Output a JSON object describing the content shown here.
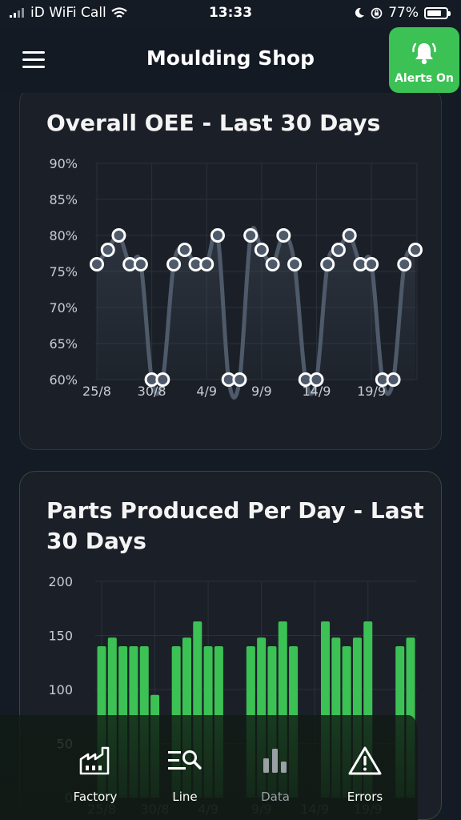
{
  "status_bar": {
    "carrier": "iD WiFi Call",
    "time": "13:33",
    "battery": "77%",
    "battery_level": 0.77
  },
  "header": {
    "title": "Moulding Shop",
    "alerts_label": "Alerts On"
  },
  "oee_card": {
    "title": "Overall OEE - Last 30 Days",
    "chart_data": {
      "type": "line",
      "ylim": [
        60,
        90
      ],
      "y_ticks": [
        "90%",
        "85%",
        "80%",
        "75%",
        "70%",
        "65%",
        "60%"
      ],
      "x_tick_labels": [
        "25/8",
        "30/8",
        "4/9",
        "9/9",
        "14/9",
        "19/9"
      ],
      "x": [
        "25/8",
        "26/8",
        "27/8",
        "28/8",
        "29/8",
        "30/8",
        "31/8",
        "1/9",
        "2/9",
        "3/9",
        "4/9",
        "5/9",
        "6/9",
        "7/9",
        "8/9",
        "9/9",
        "10/9",
        "11/9",
        "12/9",
        "13/9",
        "14/9",
        "15/9",
        "16/9",
        "17/9",
        "18/9",
        "19/9",
        "20/9",
        "21/9",
        "22/9",
        "23/9"
      ],
      "values": [
        76,
        78,
        80,
        76,
        76,
        60,
        60,
        76,
        78,
        76,
        76,
        80,
        60,
        60,
        80,
        78,
        76,
        80,
        76,
        60,
        60,
        76,
        78,
        80,
        76,
        76,
        60,
        60,
        76,
        78
      ],
      "grid": true
    }
  },
  "parts_card": {
    "title": "Parts Produced Per Day - Last 30 Days",
    "chart_data": {
      "type": "bar",
      "ylim": [
        0,
        200
      ],
      "y_ticks": [
        "200",
        "150",
        "100",
        "50",
        "0"
      ],
      "x_tick_labels": [
        "25/8",
        "30/8",
        "4/9",
        "9/9",
        "14/9",
        "19/9"
      ],
      "categories": [
        "25/8",
        "26/8",
        "27/8",
        "28/8",
        "29/8",
        "30/8",
        "31/8",
        "1/9",
        "2/9",
        "3/9",
        "4/9",
        "5/9",
        "6/9",
        "7/9",
        "8/9",
        "9/9",
        "10/9",
        "11/9",
        "12/9",
        "13/9",
        "14/9",
        "15/9",
        "16/9",
        "17/9",
        "18/9",
        "19/9",
        "20/9",
        "21/9",
        "22/9",
        "23/9"
      ],
      "values": [
        140,
        148,
        140,
        140,
        140,
        95,
        0,
        140,
        148,
        163,
        140,
        140,
        0,
        0,
        140,
        148,
        140,
        163,
        140,
        0,
        0,
        163,
        148,
        140,
        148,
        163,
        0,
        0,
        140,
        148
      ],
      "color": "#3cc155",
      "grid": true
    }
  },
  "bottom_nav": {
    "items": [
      {
        "label": "Factory",
        "icon": "factory-icon"
      },
      {
        "label": "Line",
        "icon": "line-search-icon"
      },
      {
        "label": "Data",
        "icon": "bar-chart-icon"
      },
      {
        "label": "Errors",
        "icon": "warning-icon"
      }
    ]
  },
  "colors": {
    "accent": "#3cc155",
    "background": "#141b24",
    "card": "#1b2028",
    "line": "#4e5a6a"
  }
}
